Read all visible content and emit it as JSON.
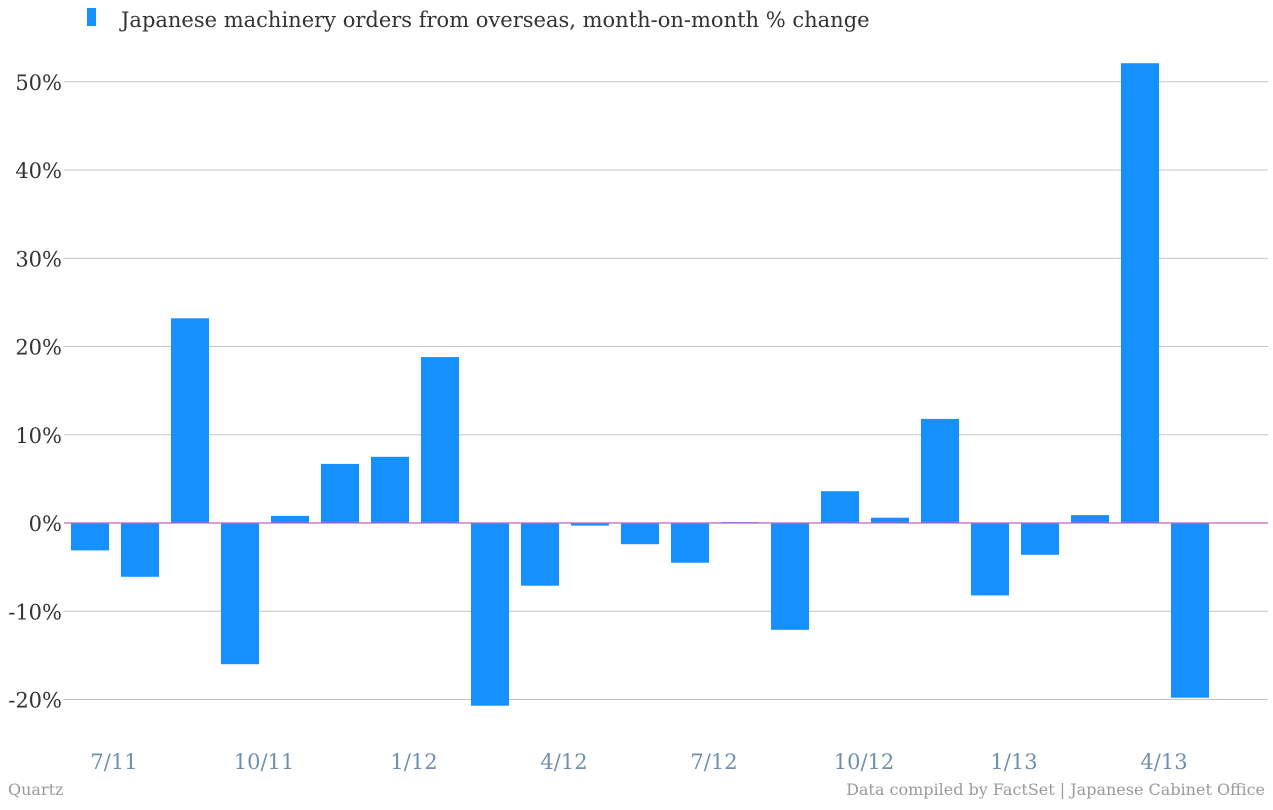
{
  "chart_data": {
    "type": "bar",
    "legend": "Japanese machinery orders from overseas, month-on-month % change",
    "legend_position": "top-left",
    "grid": true,
    "ylim": [
      -25,
      52
    ],
    "yticks": [
      -20,
      -10,
      0,
      10,
      20,
      30,
      40,
      50
    ],
    "ytick_labels": [
      "-20%",
      "-10%",
      "0%",
      "10%",
      "20%",
      "30%",
      "40%",
      "50%"
    ],
    "categories": [
      "7/11",
      "8/11",
      "9/11",
      "10/11",
      "11/11",
      "12/11",
      "1/12",
      "2/12",
      "3/12",
      "4/12",
      "5/12",
      "6/12",
      "7/12",
      "8/12",
      "9/12",
      "10/12",
      "11/12",
      "12/12",
      "1/13",
      "2/13",
      "3/13",
      "4/13",
      "5/13"
    ],
    "xtick_labels": [
      "7/11",
      "10/11",
      "1/12",
      "4/12",
      "7/12",
      "10/12",
      "1/13",
      "4/13"
    ],
    "xtick_categories": [
      "7/11",
      "10/11",
      "1/12",
      "4/12",
      "7/12",
      "10/12",
      "1/13",
      "4/13"
    ],
    "values": [
      -3.1,
      -6.1,
      23.2,
      -16.0,
      0.8,
      6.7,
      7.5,
      18.8,
      -20.7,
      -7.1,
      -0.3,
      -2.4,
      -4.5,
      0.1,
      -12.1,
      3.6,
      0.6,
      11.8,
      -8.2,
      -3.6,
      0.9,
      52.1,
      -19.8
    ],
    "bar_color": "#1590fd",
    "zero_line_color": "#c860c8",
    "grid_color": "#c4c4c4"
  },
  "footer": {
    "source_left": "Quartz",
    "source_right": "Data compiled by FactSet | Japanese Cabinet Office"
  }
}
